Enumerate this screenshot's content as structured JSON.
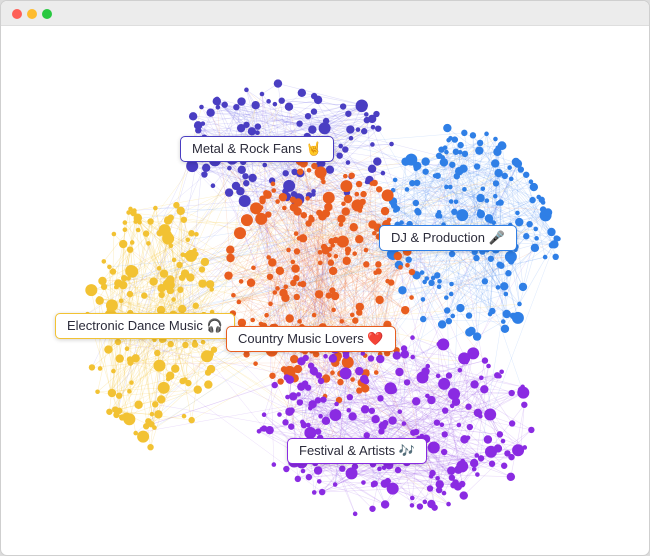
{
  "window": {
    "controls": [
      "close",
      "minimize",
      "maximize"
    ]
  },
  "clusters": [
    {
      "id": "metal",
      "label": "Metal & Rock Fans",
      "emoji": "🤘",
      "color": "#4a3ec2"
    },
    {
      "id": "dj",
      "label": "DJ & Production",
      "emoji": "🎤",
      "color": "#2f7fe6"
    },
    {
      "id": "edm",
      "label": "Electronic Dance Music",
      "emoji": "🎧",
      "color": "#f2c233"
    },
    {
      "id": "country",
      "label": "Country Music Lovers",
      "emoji": "❤️",
      "color": "#e85d1f"
    },
    {
      "id": "festival",
      "label": "Festival & Artists",
      "emoji": "🎶",
      "color": "#8a2be2"
    }
  ]
}
